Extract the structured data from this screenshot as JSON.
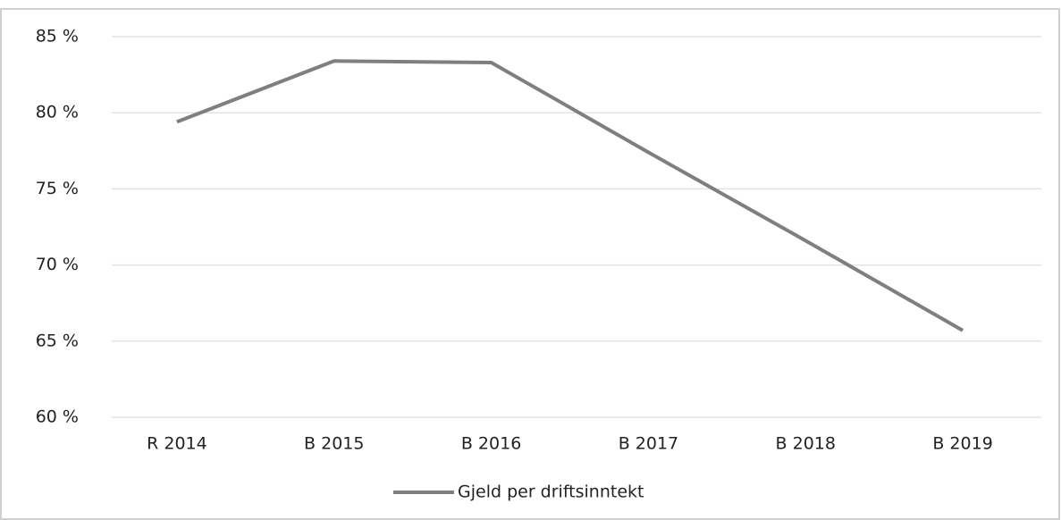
{
  "chart_data": {
    "type": "line",
    "categories": [
      "R 2014",
      "B 2015",
      "B 2016",
      "B 2017",
      "B 2018",
      "B 2019"
    ],
    "series": [
      {
        "name": "Gjeld per driftsinntekt",
        "color": "#7f7f7f",
        "values": [
          79.4,
          83.4,
          83.3,
          77.4,
          71.6,
          65.7
        ]
      }
    ],
    "ylim": [
      60,
      85
    ],
    "yticks": [
      {
        "value": 60,
        "label": "60 %"
      },
      {
        "value": 65,
        "label": "65 %"
      },
      {
        "value": 70,
        "label": "70 %"
      },
      {
        "value": 75,
        "label": "75 %"
      },
      {
        "value": 80,
        "label": "80 %"
      },
      {
        "value": 85,
        "label": "85 %"
      }
    ],
    "grid": true,
    "legend": "bottom"
  }
}
